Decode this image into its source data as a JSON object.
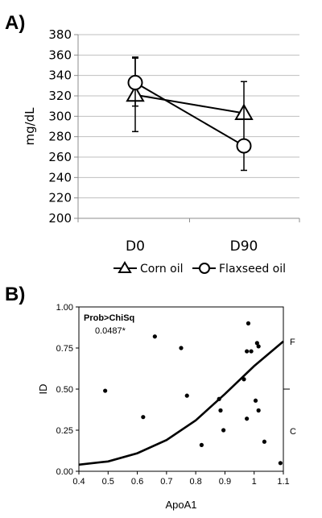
{
  "chart_data": [
    {
      "panel_label": "A)",
      "type": "line",
      "categories": [
        "D0",
        "D90"
      ],
      "ylabel": "mg/dL",
      "ylim": [
        200,
        380
      ],
      "yticks": [
        200,
        220,
        240,
        260,
        280,
        300,
        320,
        340,
        360,
        380
      ],
      "grid": "horizontal",
      "legend_position": "bottom",
      "series": [
        {
          "name": "Corn oil",
          "marker": "triangle",
          "values": [
            321,
            303
          ],
          "err_low": [
            285,
            null
          ],
          "err_high": [
            358,
            null
          ]
        },
        {
          "name": "Flaxseed oil",
          "marker": "circle",
          "values": [
            333,
            271
          ],
          "err_low": [
            310,
            247
          ],
          "err_high": [
            357,
            334
          ]
        }
      ]
    },
    {
      "panel_label": "B)",
      "type": "scatter",
      "xlabel": "ApoA1",
      "ylabel": "ID",
      "xlim": [
        0.4,
        1.1
      ],
      "ylim": [
        0.0,
        1.0
      ],
      "xticks": [
        "0.4",
        "0.5",
        "0.6",
        "0.7",
        "0.8",
        "0.9",
        "1",
        "1.1"
      ],
      "yticks": [
        "0.00",
        "0.25",
        "0.50",
        "0.75",
        "1.00"
      ],
      "right_labels": [
        {
          "text": "F",
          "y": 0.79
        },
        {
          "text": "C",
          "y": 0.245
        }
      ],
      "right_tick_y": 0.5,
      "annotation": {
        "title": "Prob>ChiSq",
        "value": "0.0487*"
      },
      "points": [
        [
          0.49,
          0.49
        ],
        [
          0.62,
          0.33
        ],
        [
          0.66,
          0.82
        ],
        [
          0.75,
          0.75
        ],
        [
          0.77,
          0.46
        ],
        [
          0.82,
          0.16
        ],
        [
          0.88,
          0.44
        ],
        [
          0.885,
          0.37
        ],
        [
          0.895,
          0.25
        ],
        [
          0.965,
          0.56
        ],
        [
          0.975,
          0.32
        ],
        [
          0.975,
          0.73
        ],
        [
          0.98,
          0.9
        ],
        [
          0.99,
          0.73
        ],
        [
          1.005,
          0.43
        ],
        [
          1.01,
          0.78
        ],
        [
          1.015,
          0.76
        ],
        [
          1.015,
          0.37
        ],
        [
          1.035,
          0.18
        ],
        [
          1.09,
          0.05
        ]
      ],
      "fit_curve": {
        "type": "logistic",
        "x": [
          0.4,
          0.5,
          0.6,
          0.7,
          0.8,
          0.9,
          1.0,
          1.1
        ],
        "y": [
          0.04,
          0.06,
          0.11,
          0.19,
          0.31,
          0.47,
          0.64,
          0.79
        ]
      }
    }
  ]
}
